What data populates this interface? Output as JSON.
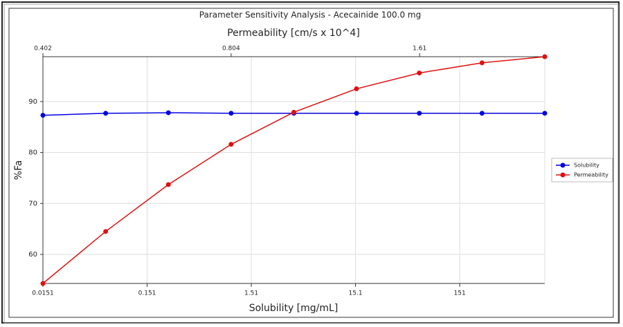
{
  "chart_data": {
    "type": "line",
    "title": "Parameter Sensitivity Analysis - Acecainide   100.0 mg",
    "xlabel": "Solubility [mg/mL]",
    "x2label": "Permeability [cm/s x 10^4]",
    "ylabel": "%Fa",
    "xscale": "log",
    "x2scale": "log",
    "xlim": [
      0.0151,
      989.6
    ],
    "xticks": [
      0.0151,
      0.151,
      1.51,
      15.1,
      151
    ],
    "x2lim": [
      0.402,
      2.553
    ],
    "x2ticks": [
      0.402,
      0.804,
      1.61
    ],
    "ylim": [
      54.3,
      98.8
    ],
    "yticks": [
      60,
      70,
      80,
      90
    ],
    "grid": true,
    "legend": "right",
    "series": [
      {
        "name": "Solubility",
        "color": "#0000e0",
        "axis": "x",
        "x": [
          0.0151,
          0.0604,
          0.2416,
          0.9664,
          3.866,
          15.46,
          61.85,
          247.4,
          989.6
        ],
        "values": [
          87.3,
          87.7,
          87.8,
          87.7,
          87.7,
          87.7,
          87.7,
          87.7,
          87.7
        ]
      },
      {
        "name": "Permeability",
        "color": "#e01010",
        "axis": "x2",
        "x": [
          0.402,
          0.5065,
          0.6381,
          0.804,
          1.013,
          1.276,
          1.608,
          2.026,
          2.553
        ],
        "values": [
          54.3,
          64.5,
          73.7,
          81.6,
          87.9,
          92.5,
          95.6,
          97.6,
          98.8
        ]
      }
    ]
  }
}
